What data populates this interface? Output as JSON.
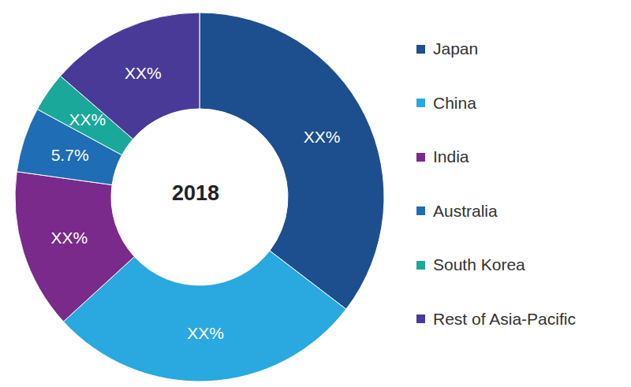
{
  "chart_data": {
    "type": "pie",
    "title": "2018",
    "categories": [
      "Japan",
      "China",
      "India",
      "Australia",
      "South Korea",
      "Rest of Asia-Pacific"
    ],
    "values": [
      35.4,
      27.8,
      14,
      5.7,
      3.5,
      13.6
    ],
    "value_labels": [
      "XX%",
      "XX%",
      "XX%",
      "5.7%",
      "XX%",
      "XX%"
    ],
    "colors": [
      "#1d4f8f",
      "#2aa8e0",
      "#7a2a8a",
      "#1f6db5",
      "#1aa89a",
      "#4a3a98"
    ],
    "data_labels": true,
    "legend": "right"
  }
}
